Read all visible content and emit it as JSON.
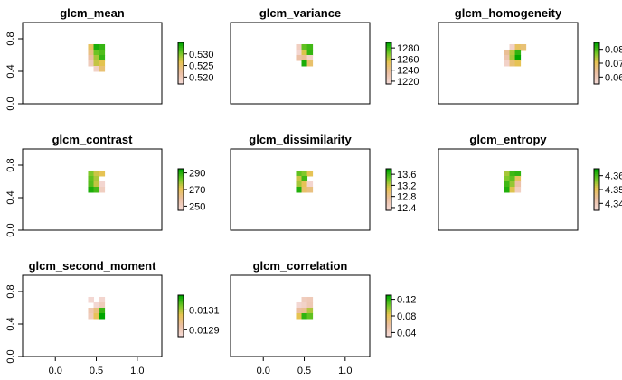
{
  "chart_data": [
    {
      "type": "heatmap",
      "title": "glcm_mean",
      "yticks": [
        "0.0",
        "0.4",
        "0.8"
      ],
      "xticks": [],
      "legend_ticks": [
        "0.530",
        "0.525",
        "0.520"
      ],
      "legend_values": [
        0.53,
        0.525,
        0.52
      ],
      "value_range": [
        0.517,
        0.535
      ],
      "grid": [
        [
          null,
          null,
          null,
          null
        ],
        [
          0.526,
          0.534,
          0.533,
          null
        ],
        [
          0.524,
          0.531,
          0.532,
          null
        ],
        [
          0.522,
          0.529,
          0.533,
          null
        ],
        [
          0.52,
          0.528,
          0.527,
          null
        ],
        [
          null,
          0.519,
          0.525,
          null
        ]
      ]
    },
    {
      "type": "heatmap",
      "title": "glcm_variance",
      "yticks": [],
      "xticks": [],
      "legend_ticks": [
        "1280",
        "1260",
        "1240",
        "1220"
      ],
      "legend_values": [
        1280,
        1260,
        1240,
        1220
      ],
      "value_range": [
        1215,
        1290
      ],
      "grid": [
        [
          null,
          null,
          null,
          null
        ],
        [
          1225,
          1275,
          1280,
          null
        ],
        [
          1220,
          1258,
          1282,
          null
        ],
        [
          1235,
          1240,
          1222,
          null
        ],
        [
          null,
          1286,
          1250,
          null
        ],
        [
          null,
          null,
          null,
          null
        ]
      ]
    },
    {
      "type": "heatmap",
      "title": "glcm_homogeneity",
      "yticks": [],
      "xticks": [],
      "legend_ticks": [
        "0.08",
        "0.07",
        "0.06"
      ],
      "legend_values": [
        0.08,
        0.07,
        0.06
      ],
      "value_range": [
        0.055,
        0.085
      ],
      "grid": [
        [
          null,
          null,
          null,
          null
        ],
        [
          null,
          0.058,
          0.07,
          0.068
        ],
        [
          0.065,
          0.074,
          0.082,
          null
        ],
        [
          0.062,
          0.075,
          0.085,
          null
        ],
        [
          0.058,
          0.068,
          0.071,
          null
        ],
        [
          null,
          null,
          null,
          null
        ]
      ]
    },
    {
      "type": "heatmap",
      "title": "glcm_contrast",
      "yticks": [
        "0.0",
        "0.4",
        "0.8"
      ],
      "xticks": [],
      "legend_ticks": [
        "290",
        "270",
        "250"
      ],
      "legend_values": [
        290,
        270,
        250
      ],
      "value_range": [
        245,
        295
      ],
      "grid": [
        [
          null,
          null,
          null,
          null
        ],
        [
          282,
          275,
          272,
          null
        ],
        [
          285,
          278,
          null,
          null
        ],
        [
          286,
          276,
          248,
          null
        ],
        [
          292,
          288,
          252,
          null
        ],
        [
          null,
          null,
          null,
          null
        ]
      ]
    },
    {
      "type": "heatmap",
      "title": "glcm_dissimilarity",
      "yticks": [],
      "xticks": [],
      "legend_ticks": [
        "13.6",
        "13.2",
        "12.8",
        "12.4"
      ],
      "legend_values": [
        13.6,
        13.2,
        12.8,
        12.4
      ],
      "value_range": [
        12.3,
        13.8
      ],
      "grid": [
        [
          null,
          null,
          null,
          null
        ],
        [
          13.5,
          13.4,
          13.1,
          null
        ],
        [
          13.2,
          13.6,
          null,
          null
        ],
        [
          13.3,
          13.1,
          12.4,
          null
        ],
        [
          13.7,
          13.0,
          12.9,
          null
        ],
        [
          null,
          null,
          null,
          null
        ]
      ]
    },
    {
      "type": "heatmap",
      "title": "glcm_entropy",
      "yticks": [],
      "xticks": [],
      "legend_ticks": [
        "4.36",
        "4.35",
        "4.34"
      ],
      "legend_values": [
        4.36,
        4.35,
        4.34
      ],
      "value_range": [
        4.335,
        4.365
      ],
      "grid": [
        [
          null,
          null,
          null,
          null
        ],
        [
          4.355,
          4.361,
          4.362,
          null
        ],
        [
          4.357,
          4.359,
          4.35,
          null
        ],
        [
          4.361,
          4.356,
          4.343,
          null
        ],
        [
          4.363,
          4.352,
          4.339,
          null
        ],
        [
          null,
          null,
          null,
          null
        ]
      ]
    },
    {
      "type": "heatmap",
      "title": "glcm_second_moment",
      "yticks": [
        "0.0",
        "0.4",
        "0.8"
      ],
      "xticks": [
        "0.0",
        "0.5",
        "1.0"
      ],
      "legend_ticks": [
        "0.0131",
        "0.0129"
      ],
      "legend_values": [
        0.0131,
        0.0129
      ],
      "value_range": [
        0.01283,
        0.01325
      ],
      "grid": [
        [
          null,
          null,
          null,
          null
        ],
        [
          0.01285,
          null,
          0.01286,
          null
        ],
        [
          null,
          0.01285,
          0.0129,
          null
        ],
        [
          0.01292,
          0.013,
          0.0132,
          null
        ],
        [
          0.0129,
          0.01305,
          0.01325,
          null
        ],
        [
          null,
          null,
          null,
          null
        ]
      ]
    },
    {
      "type": "heatmap",
      "title": "glcm_correlation",
      "yticks": [],
      "xticks": [
        "0.0",
        "0.5",
        "1.0"
      ],
      "legend_ticks": [
        "0.12",
        "0.08",
        "0.04"
      ],
      "legend_values": [
        0.12,
        0.08,
        0.04
      ],
      "value_range": [
        0.03,
        0.13
      ],
      "grid": [
        [
          null,
          null,
          null,
          null
        ],
        [
          null,
          0.045,
          0.048,
          null
        ],
        [
          0.035,
          0.04,
          0.05,
          null
        ],
        [
          0.06,
          0.065,
          0.095,
          null
        ],
        [
          0.085,
          0.12,
          0.11,
          null
        ],
        [
          null,
          null,
          null,
          null
        ]
      ]
    }
  ]
}
